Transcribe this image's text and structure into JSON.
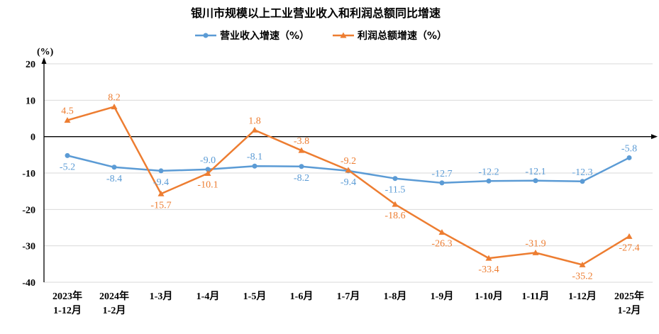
{
  "chart_data": {
    "type": "line",
    "title": "银川市规模以上工业营业收入和利润总额同比增速",
    "yunit": "(%)",
    "ylim": [
      -40,
      20
    ],
    "yticks": [
      20,
      10,
      0,
      -10,
      -20,
      -30,
      -40
    ],
    "grid": true,
    "legend_position": "top",
    "categories": [
      [
        "2023年",
        "1-12月"
      ],
      [
        "2024年",
        "1-2月"
      ],
      [
        "1-3月"
      ],
      [
        "1-4月"
      ],
      [
        "1-5月"
      ],
      [
        "1-6月"
      ],
      [
        "1-7月"
      ],
      [
        "1-8月"
      ],
      [
        "1-9月"
      ],
      [
        "1-10月"
      ],
      [
        "1-11月"
      ],
      [
        "1-12月"
      ],
      [
        "2025年",
        "1-2月"
      ]
    ],
    "series": [
      {
        "name": "营业收入增速（%）",
        "color": "#5B9BD5",
        "marker": "circle",
        "values": [
          -5.2,
          -8.4,
          -9.4,
          -9.0,
          -8.1,
          -8.2,
          -9.4,
          -11.5,
          -12.7,
          -12.2,
          -12.1,
          -12.3,
          -5.8
        ]
      },
      {
        "name": "利润总额增速（%）",
        "color": "#ED7D31",
        "marker": "triangle",
        "values": [
          4.5,
          8.2,
          -15.7,
          -10.1,
          1.8,
          -3.8,
          -9.2,
          -18.6,
          -26.3,
          -33.4,
          -31.9,
          -35.2,
          -27.4
        ]
      }
    ]
  }
}
